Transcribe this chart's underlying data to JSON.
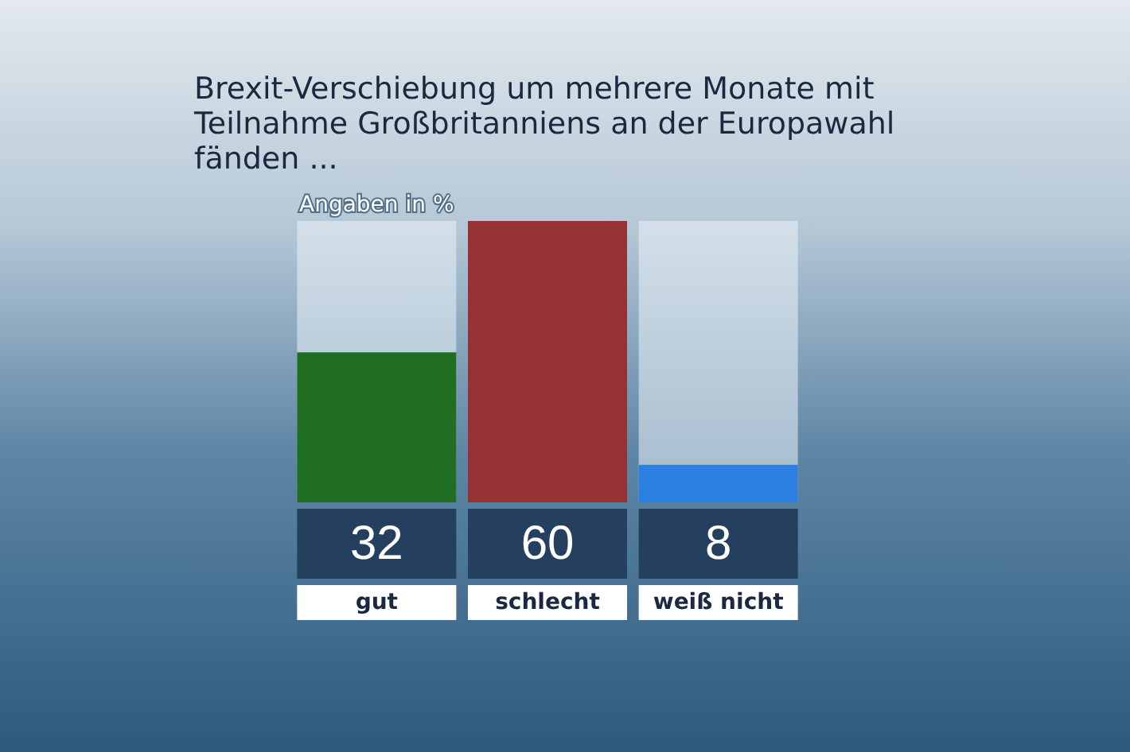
{
  "chart_data": {
    "type": "bar",
    "title": "Brexit-Verschiebung um mehrere Monate mit\nTeilnahme Großbritanniens an der Europawahl\nfänden ...",
    "subtitle": "Angaben in %",
    "categories": [
      "gut",
      "schlecht",
      "weiß nicht"
    ],
    "values": [
      32,
      60,
      8
    ],
    "colors": [
      "#1f6e21",
      "#973234",
      "#2a7fe0"
    ],
    "data_labels": true
  }
}
